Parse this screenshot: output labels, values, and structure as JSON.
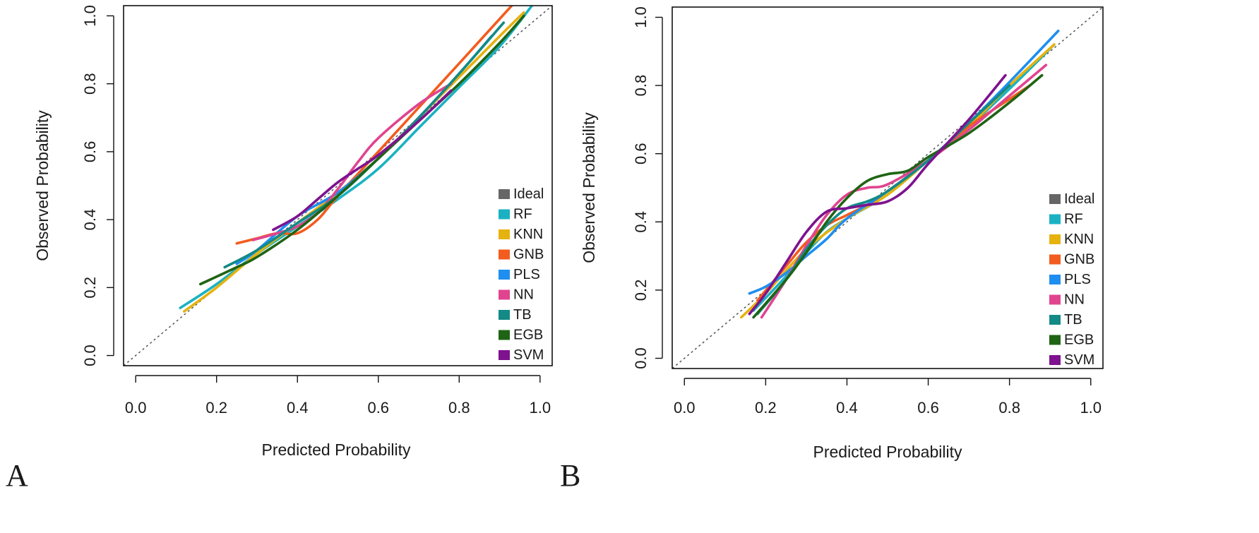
{
  "chart_data": [
    {
      "panel_label": "A",
      "type": "line",
      "xlabel": "Predicted Probability",
      "ylabel": "Observed  Probability",
      "xlim": [
        -0.03,
        1.03
      ],
      "ylim": [
        -0.03,
        1.03
      ],
      "x_ticks": [
        0.0,
        0.2,
        0.4,
        0.6,
        0.8,
        1.0
      ],
      "x_tick_labels": [
        "0.0",
        "0.2",
        "0.4",
        "0.6",
        "0.8",
        "1.0"
      ],
      "y_ticks": [
        0.0,
        0.2,
        0.4,
        0.6,
        0.8,
        1.0
      ],
      "y_tick_labels": [
        "0.0",
        "0.2",
        "0.4",
        "0.6",
        "0.8",
        "1.0"
      ],
      "legend_position": "bottom-right",
      "ideal": {
        "name": "Ideal",
        "color": "#666666",
        "x": [
          -0.03,
          1.03
        ],
        "y": [
          -0.03,
          1.03
        ]
      },
      "series": [
        {
          "name": "RF",
          "color": "#1ab2c2",
          "x": [
            0.11,
            0.2,
            0.3,
            0.4,
            0.5,
            0.6,
            0.7,
            0.8,
            0.9,
            0.98
          ],
          "y": [
            0.14,
            0.21,
            0.3,
            0.38,
            0.46,
            0.55,
            0.67,
            0.79,
            0.91,
            1.03
          ]
        },
        {
          "name": "KNN",
          "color": "#e6b20f",
          "x": [
            0.12,
            0.2,
            0.3,
            0.4,
            0.5,
            0.6,
            0.7,
            0.8,
            0.9,
            0.96
          ],
          "y": [
            0.13,
            0.2,
            0.3,
            0.39,
            0.48,
            0.58,
            0.7,
            0.82,
            0.94,
            1.01
          ]
        },
        {
          "name": "GNB",
          "color": "#f25c1e",
          "x": [
            0.25,
            0.3,
            0.35,
            0.4,
            0.45,
            0.5,
            0.6,
            0.7,
            0.8,
            0.93
          ],
          "y": [
            0.33,
            0.345,
            0.36,
            0.36,
            0.4,
            0.47,
            0.6,
            0.73,
            0.86,
            1.03
          ]
        },
        {
          "name": "PLS",
          "color": "#1e8ef0",
          "x": [
            0.25,
            0.3,
            0.4,
            0.5,
            0.6,
            0.7,
            0.8,
            0.88
          ],
          "y": [
            0.27,
            0.31,
            0.41,
            0.48,
            0.58,
            0.7,
            0.83,
            0.94
          ]
        },
        {
          "name": "NN",
          "color": "#e0448f",
          "x": [
            0.29,
            0.35,
            0.4,
            0.45,
            0.5,
            0.55,
            0.6,
            0.7,
            0.78
          ],
          "y": [
            0.34,
            0.36,
            0.38,
            0.42,
            0.49,
            0.57,
            0.64,
            0.74,
            0.8
          ]
        },
        {
          "name": "TB",
          "color": "#138a85",
          "x": [
            0.22,
            0.3,
            0.4,
            0.5,
            0.6,
            0.7,
            0.8,
            0.91
          ],
          "y": [
            0.26,
            0.31,
            0.39,
            0.47,
            0.58,
            0.7,
            0.83,
            0.98
          ]
        },
        {
          "name": "EGB",
          "color": "#1f6414",
          "x": [
            0.16,
            0.25,
            0.3,
            0.4,
            0.5,
            0.6,
            0.7,
            0.8,
            0.9,
            0.96
          ],
          "y": [
            0.21,
            0.26,
            0.29,
            0.37,
            0.47,
            0.58,
            0.69,
            0.8,
            0.92,
            1.0
          ]
        },
        {
          "name": "SVM",
          "color": "#7e128f",
          "x": [
            0.34,
            0.4,
            0.45,
            0.5,
            0.55,
            0.6,
            0.7,
            0.78
          ],
          "y": [
            0.37,
            0.41,
            0.46,
            0.51,
            0.55,
            0.59,
            0.69,
            0.78
          ]
        }
      ]
    },
    {
      "panel_label": "B",
      "type": "line",
      "xlabel": "Predicted Probability",
      "ylabel": "Observed  Probability",
      "xlim": [
        -0.03,
        1.03
      ],
      "ylim": [
        -0.03,
        1.03
      ],
      "x_ticks": [
        0.0,
        0.2,
        0.4,
        0.6,
        0.8,
        1.0
      ],
      "x_tick_labels": [
        "0.0",
        "0.2",
        "0.4",
        "0.6",
        "0.8",
        "1.0"
      ],
      "y_ticks": [
        0.0,
        0.2,
        0.4,
        0.6,
        0.8,
        1.0
      ],
      "y_tick_labels": [
        "0.0",
        "0.2",
        "0.4",
        "0.6",
        "0.8",
        "1.0"
      ],
      "legend_position": "bottom-right",
      "ideal": {
        "name": "Ideal",
        "color": "#666666",
        "x": [
          -0.03,
          1.03
        ],
        "y": [
          -0.03,
          1.03
        ]
      },
      "series": [
        {
          "name": "RF",
          "color": "#1ab2c2",
          "x": [
            0.17,
            0.25,
            0.3,
            0.35,
            0.4,
            0.5,
            0.6,
            0.7,
            0.8,
            0.91
          ],
          "y": [
            0.14,
            0.24,
            0.31,
            0.37,
            0.41,
            0.48,
            0.58,
            0.68,
            0.79,
            0.92
          ]
        },
        {
          "name": "KNN",
          "color": "#e6b20f",
          "x": [
            0.14,
            0.2,
            0.3,
            0.4,
            0.5,
            0.6,
            0.7,
            0.8,
            0.91
          ],
          "y": [
            0.12,
            0.19,
            0.32,
            0.41,
            0.48,
            0.58,
            0.68,
            0.8,
            0.92
          ]
        },
        {
          "name": "GNB",
          "color": "#f25c1e",
          "x": [
            0.18,
            0.25,
            0.3,
            0.35,
            0.4,
            0.45,
            0.5,
            0.6,
            0.7,
            0.8,
            0.85
          ],
          "y": [
            0.17,
            0.27,
            0.34,
            0.39,
            0.42,
            0.45,
            0.49,
            0.58,
            0.68,
            0.76,
            0.8
          ]
        },
        {
          "name": "PLS",
          "color": "#1e8ef0",
          "x": [
            0.16,
            0.2,
            0.25,
            0.3,
            0.35,
            0.4,
            0.5,
            0.6,
            0.7,
            0.8,
            0.92
          ],
          "y": [
            0.19,
            0.21,
            0.25,
            0.3,
            0.35,
            0.41,
            0.49,
            0.58,
            0.69,
            0.81,
            0.96
          ]
        },
        {
          "name": "NN",
          "color": "#e0448f",
          "x": [
            0.19,
            0.25,
            0.3,
            0.35,
            0.4,
            0.45,
            0.5,
            0.6,
            0.7,
            0.8,
            0.89
          ],
          "y": [
            0.12,
            0.23,
            0.33,
            0.42,
            0.48,
            0.5,
            0.51,
            0.58,
            0.67,
            0.77,
            0.86
          ]
        },
        {
          "name": "TB",
          "color": "#138a85",
          "x": [
            0.18,
            0.25,
            0.3,
            0.35,
            0.4,
            0.45,
            0.5,
            0.6,
            0.7,
            0.8
          ],
          "y": [
            0.13,
            0.23,
            0.32,
            0.39,
            0.44,
            0.46,
            0.49,
            0.58,
            0.69,
            0.8
          ]
        },
        {
          "name": "EGB",
          "color": "#1f6414",
          "x": [
            0.17,
            0.25,
            0.3,
            0.35,
            0.4,
            0.45,
            0.5,
            0.55,
            0.6,
            0.7,
            0.8,
            0.88
          ],
          "y": [
            0.12,
            0.23,
            0.31,
            0.4,
            0.47,
            0.52,
            0.54,
            0.55,
            0.59,
            0.66,
            0.75,
            0.83
          ]
        },
        {
          "name": "SVM",
          "color": "#7e128f",
          "x": [
            0.16,
            0.2,
            0.25,
            0.3,
            0.35,
            0.4,
            0.45,
            0.5,
            0.55,
            0.6,
            0.7,
            0.79
          ],
          "y": [
            0.13,
            0.19,
            0.28,
            0.37,
            0.43,
            0.44,
            0.45,
            0.46,
            0.5,
            0.57,
            0.7,
            0.83
          ]
        }
      ]
    }
  ]
}
